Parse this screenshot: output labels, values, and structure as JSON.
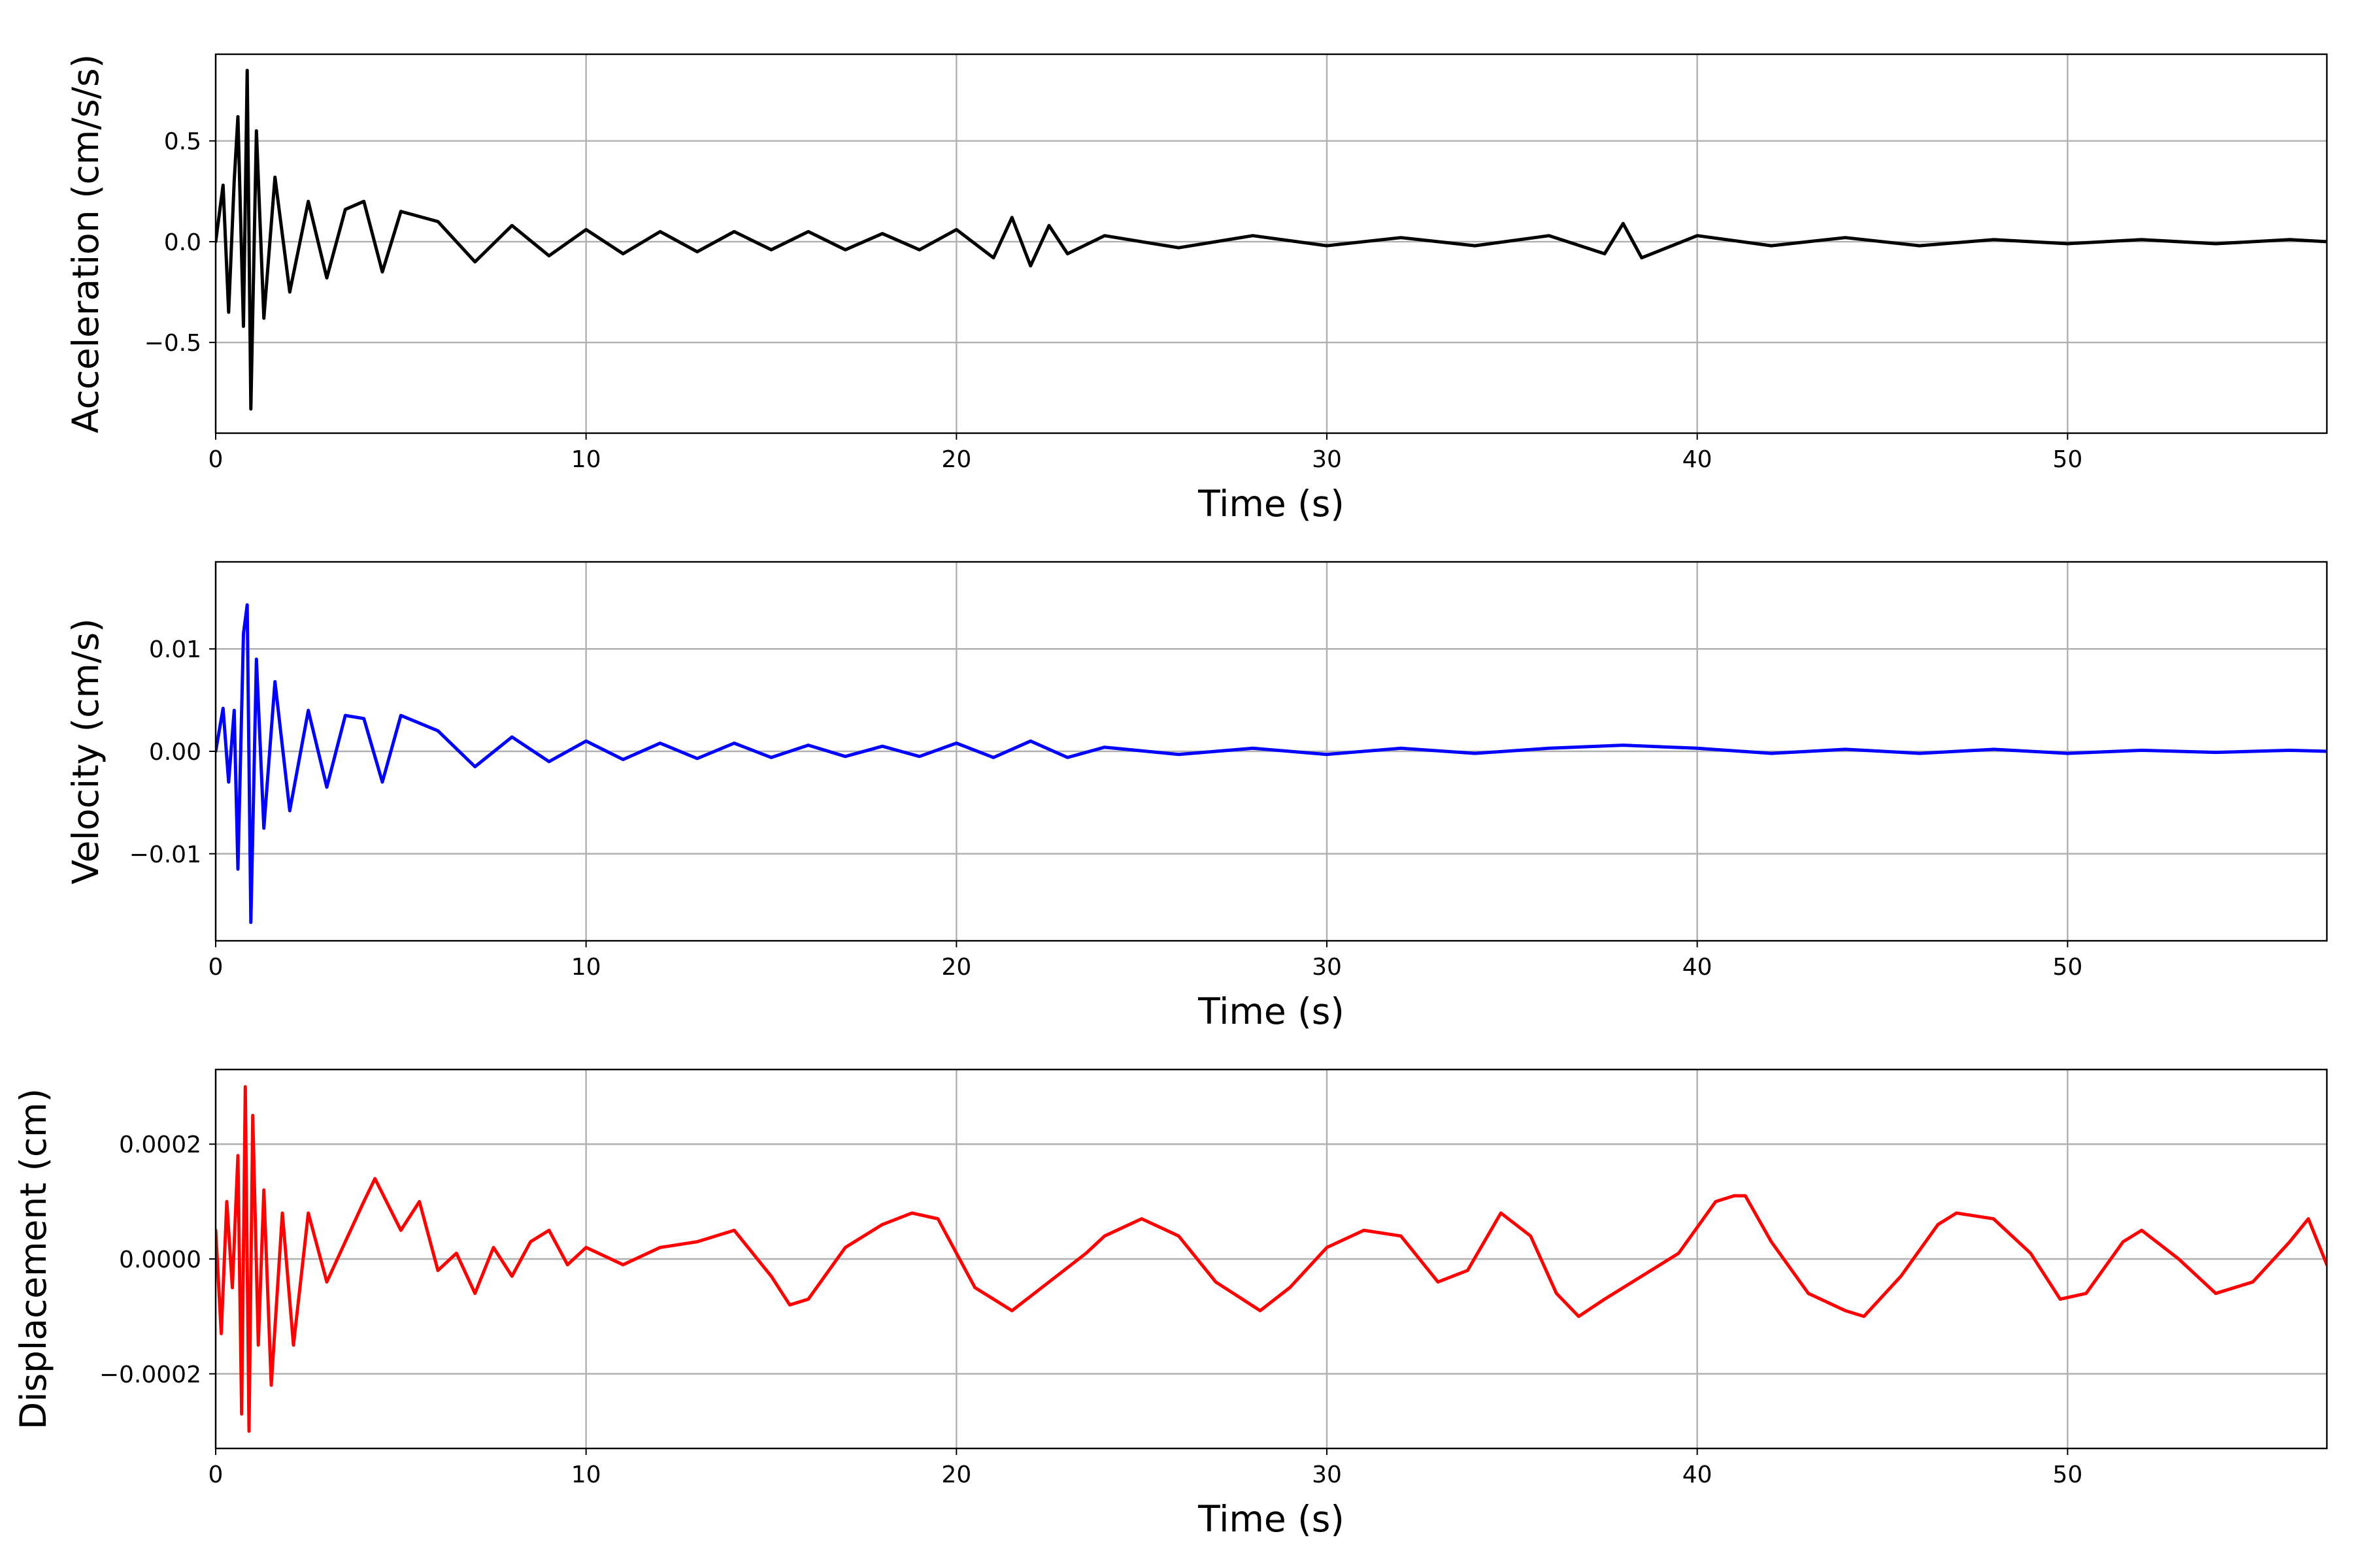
{
  "chart_data": [
    {
      "type": "line",
      "xlabel": "Time (s)",
      "ylabel": "Acceleration (cm/s/s)",
      "xlim": [
        0,
        57
      ],
      "ylim": [
        -0.95,
        0.93
      ],
      "xticks": [
        0,
        10,
        20,
        30,
        40,
        50
      ],
      "xtick_labels": [
        "0",
        "10",
        "20",
        "30",
        "40",
        "50"
      ],
      "yticks": [
        -0.5,
        0.0,
        0.5
      ],
      "ytick_labels": [
        "−0.5",
        "0.0",
        "0.5"
      ],
      "grid": true,
      "series": [
        {
          "color": "#000000",
          "x": [
            0,
            0.2,
            0.35,
            0.5,
            0.6,
            0.75,
            0.85,
            0.95,
            1.1,
            1.3,
            1.6,
            2.0,
            2.5,
            3.0,
            3.5,
            4.0,
            4.5,
            5.0,
            6.0,
            7.0,
            8.0,
            9.0,
            10.0,
            11.0,
            12.0,
            13.0,
            14.0,
            15.0,
            16.0,
            17.0,
            18.0,
            19.0,
            20.0,
            21.0,
            21.5,
            22.0,
            22.5,
            23.0,
            24.0,
            26.0,
            28.0,
            30.0,
            32.0,
            34.0,
            36.0,
            37.5,
            38.0,
            38.5,
            40.0,
            42.0,
            44.0,
            46.0,
            48.0,
            50.0,
            52.0,
            54.0,
            56.0,
            57.0
          ],
          "y": [
            0.0,
            0.28,
            -0.35,
            0.3,
            0.62,
            -0.42,
            0.85,
            -0.83,
            0.55,
            -0.38,
            0.32,
            -0.25,
            0.2,
            -0.18,
            0.16,
            0.2,
            -0.15,
            0.15,
            0.1,
            -0.1,
            0.08,
            -0.07,
            0.06,
            -0.06,
            0.05,
            -0.05,
            0.05,
            -0.04,
            0.05,
            -0.04,
            0.04,
            -0.04,
            0.06,
            -0.08,
            0.12,
            -0.12,
            0.08,
            -0.06,
            0.03,
            -0.03,
            0.03,
            -0.02,
            0.02,
            -0.02,
            0.03,
            -0.06,
            0.09,
            -0.08,
            0.03,
            -0.02,
            0.02,
            -0.02,
            0.01,
            -0.01,
            0.01,
            -0.01,
            0.01,
            0.0
          ]
        }
      ]
    },
    {
      "type": "line",
      "xlabel": "Time (s)",
      "ylabel": "Velocity (cm/s)",
      "xlim": [
        0,
        57
      ],
      "ylim": [
        -0.0185,
        0.0185
      ],
      "xticks": [
        0,
        10,
        20,
        30,
        40,
        50
      ],
      "xtick_labels": [
        "0",
        "10",
        "20",
        "30",
        "40",
        "50"
      ],
      "yticks": [
        -0.01,
        0.0,
        0.01
      ],
      "ytick_labels": [
        "−0.01",
        "0.00",
        "0.01"
      ],
      "grid": true,
      "series": [
        {
          "color": "#0000ff",
          "x": [
            0,
            0.2,
            0.35,
            0.5,
            0.6,
            0.75,
            0.85,
            0.95,
            1.1,
            1.3,
            1.6,
            2.0,
            2.5,
            3.0,
            3.5,
            4.0,
            4.5,
            5.0,
            6.0,
            7.0,
            8.0,
            9.0,
            10.0,
            11.0,
            12.0,
            13.0,
            14.0,
            15.0,
            16.0,
            17.0,
            18.0,
            19.0,
            20.0,
            21.0,
            22.0,
            23.0,
            24.0,
            26.0,
            28.0,
            30.0,
            32.0,
            34.0,
            36.0,
            38.0,
            40.0,
            42.0,
            44.0,
            46.0,
            48.0,
            50.0,
            52.0,
            54.0,
            56.0,
            57.0
          ],
          "y": [
            0.0,
            0.0042,
            -0.003,
            0.004,
            -0.0115,
            0.0115,
            0.0143,
            -0.0167,
            0.009,
            -0.0075,
            0.0068,
            -0.0058,
            0.004,
            -0.0035,
            0.0035,
            0.0032,
            -0.003,
            0.0035,
            0.002,
            -0.0015,
            0.0014,
            -0.001,
            0.001,
            -0.0008,
            0.0008,
            -0.0007,
            0.0008,
            -0.0006,
            0.0006,
            -0.0005,
            0.0005,
            -0.0005,
            0.0008,
            -0.0006,
            0.001,
            -0.0006,
            0.0004,
            -0.0003,
            0.0003,
            -0.0003,
            0.0003,
            -0.0002,
            0.0003,
            0.0006,
            0.0003,
            -0.0002,
            0.0002,
            -0.0002,
            0.0002,
            -0.0002,
            0.0001,
            -0.0001,
            0.0001,
            0.0
          ]
        }
      ]
    },
    {
      "type": "line",
      "xlabel": "Time (s)",
      "ylabel": "Displacement (cm)",
      "xlim": [
        0,
        57
      ],
      "ylim": [
        -0.00033,
        0.00033
      ],
      "xticks": [
        0,
        10,
        20,
        30,
        40,
        50
      ],
      "xtick_labels": [
        "0",
        "10",
        "20",
        "30",
        "40",
        "50"
      ],
      "yticks": [
        -0.0002,
        0.0,
        0.0002
      ],
      "ytick_labels": [
        "−0.0002",
        "0.0000",
        "0.0002"
      ],
      "grid": true,
      "series": [
        {
          "color": "#ff0000",
          "x": [
            0,
            0.15,
            0.3,
            0.45,
            0.6,
            0.7,
            0.8,
            0.9,
            1.0,
            1.15,
            1.3,
            1.5,
            1.8,
            2.1,
            2.5,
            3.0,
            3.5,
            4.0,
            4.3,
            5.0,
            5.5,
            6.0,
            6.5,
            7.0,
            7.5,
            8.0,
            8.5,
            9.0,
            9.5,
            10.0,
            11.0,
            12.0,
            13.0,
            14.0,
            15.0,
            15.5,
            16.0,
            17.0,
            18.0,
            18.8,
            19.5,
            20.5,
            21.5,
            22.5,
            23.5,
            24.0,
            25.0,
            26.0,
            27.0,
            28.2,
            29.0,
            30.0,
            31.0,
            32.0,
            33.0,
            33.8,
            34.7,
            35.5,
            36.2,
            36.8,
            37.5,
            38.5,
            39.5,
            40.5,
            41.0,
            41.3,
            42.0,
            43.0,
            44.0,
            44.5,
            45.5,
            46.5,
            47.0,
            48.0,
            49.0,
            49.8,
            50.5,
            51.5,
            52.0,
            53.0,
            54.0,
            55.0,
            56.0,
            56.5,
            57.0
          ],
          "y": [
            5e-05,
            -0.00013,
            0.0001,
            -5e-05,
            0.00018,
            -0.00027,
            0.0003,
            -0.0003,
            0.00025,
            -0.00015,
            0.00012,
            -0.00022,
            8e-05,
            -0.00015,
            8e-05,
            -4e-05,
            3e-05,
            0.0001,
            0.00014,
            5e-05,
            0.0001,
            -2e-05,
            1e-05,
            -6e-05,
            2e-05,
            -3e-05,
            3e-05,
            5e-05,
            -1e-05,
            2e-05,
            -1e-05,
            2e-05,
            3e-05,
            5e-05,
            -3e-05,
            -8e-05,
            -7e-05,
            2e-05,
            6e-05,
            8e-05,
            7e-05,
            -5e-05,
            -9e-05,
            -4e-05,
            1e-05,
            4e-05,
            7e-05,
            4e-05,
            -4e-05,
            -9e-05,
            -5e-05,
            2e-05,
            5e-05,
            4e-05,
            -4e-05,
            -2e-05,
            8e-05,
            4e-05,
            -6e-05,
            -0.0001,
            -7e-05,
            -3e-05,
            1e-05,
            0.0001,
            0.00011,
            0.00011,
            3e-05,
            -6e-05,
            -9e-05,
            -0.0001,
            -3e-05,
            6e-05,
            8e-05,
            7e-05,
            1e-05,
            -7e-05,
            -6e-05,
            3e-05,
            5e-05,
            0.0,
            -6e-05,
            -4e-05,
            3e-05,
            7e-05,
            -1e-05
          ]
        }
      ]
    }
  ]
}
